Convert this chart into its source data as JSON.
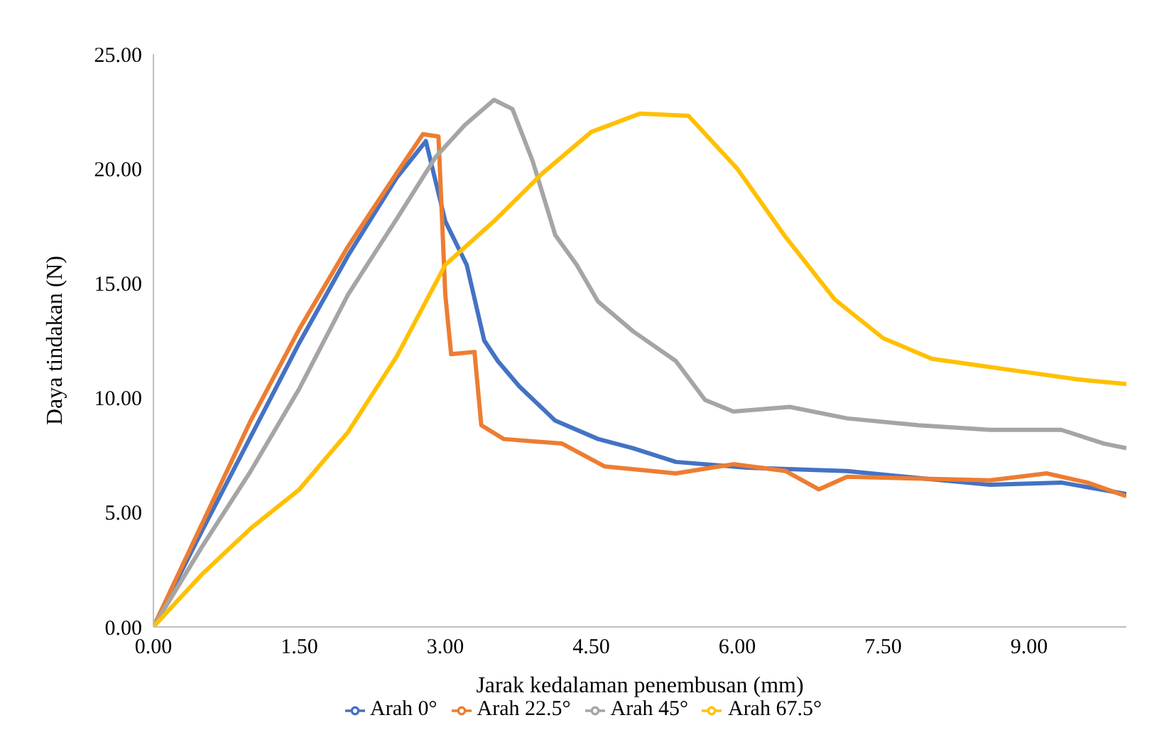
{
  "chart_data": {
    "type": "line",
    "xlabel": "Jarak kedalaman penembusan (mm)",
    "ylabel": "Daya tindakan (N)",
    "xlim": [
      0,
      10
    ],
    "ylim": [
      0,
      25
    ],
    "xticks": [
      {
        "value": 0,
        "label": "0.00"
      },
      {
        "value": 1.5,
        "label": "1.50"
      },
      {
        "value": 3,
        "label": "3.00"
      },
      {
        "value": 4.5,
        "label": "4.50"
      },
      {
        "value": 6,
        "label": "6.00"
      },
      {
        "value": 7.5,
        "label": "7.50"
      },
      {
        "value": 9,
        "label": "9.00"
      }
    ],
    "yticks": [
      {
        "value": 0,
        "label": "0.00"
      },
      {
        "value": 5,
        "label": "5.00"
      },
      {
        "value": 10,
        "label": "10.00"
      },
      {
        "value": 15,
        "label": "15.00"
      },
      {
        "value": 20,
        "label": "20.00"
      },
      {
        "value": 25,
        "label": "25.00"
      }
    ],
    "grid": false,
    "legend": "bottom",
    "marker": "none",
    "line_style": "solid",
    "series": [
      {
        "name": "Arah 0°",
        "color": "#4472c4",
        "x": [
          0,
          0.5,
          1,
          1.5,
          2,
          2.5,
          2.8,
          3.0,
          3.22,
          3.4,
          3.54,
          3.76,
          4.13,
          4.57,
          4.93,
          5.37,
          6.1,
          7.13,
          7.86,
          8.6,
          9.33,
          10
        ],
        "values": [
          0,
          4.2,
          8.3,
          12.4,
          16.2,
          19.6,
          21.2,
          17.7,
          15.8,
          12.5,
          11.6,
          10.5,
          9.0,
          8.2,
          7.8,
          7.2,
          6.95,
          6.8,
          6.5,
          6.2,
          6.3,
          5.8
        ]
      },
      {
        "name": "Arah 22.5°",
        "color": "#ed7d31",
        "x": [
          0,
          0.5,
          1,
          1.5,
          2,
          2.5,
          2.77,
          2.93,
          3.0,
          3.06,
          3.3,
          3.37,
          3.6,
          4.2,
          4.64,
          5.37,
          5.96,
          6.5,
          6.84,
          7.13,
          8.6,
          9.18,
          9.6,
          10
        ],
        "values": [
          0,
          4.5,
          9.0,
          13.0,
          16.6,
          19.8,
          21.5,
          21.4,
          14.5,
          11.9,
          12.0,
          8.8,
          8.2,
          8.0,
          7.0,
          6.7,
          7.1,
          6.8,
          6.0,
          6.55,
          6.4,
          6.7,
          6.3,
          5.7
        ]
      },
      {
        "name": "Arah 45°",
        "color": "#a5a5a5",
        "x": [
          0,
          0.5,
          1,
          1.5,
          2,
          2.5,
          2.9,
          3.2,
          3.5,
          3.69,
          3.9,
          4.13,
          4.35,
          4.57,
          4.93,
          5.37,
          5.67,
          5.96,
          6.54,
          7.13,
          7.86,
          8.6,
          9.33,
          9.77,
          10
        ],
        "values": [
          0,
          3.5,
          6.8,
          10.4,
          14.5,
          17.8,
          20.5,
          21.9,
          23.0,
          22.6,
          20.3,
          17.1,
          15.8,
          14.2,
          12.9,
          11.6,
          9.9,
          9.4,
          9.6,
          9.1,
          8.8,
          8.6,
          8.6,
          8.0,
          7.8
        ]
      },
      {
        "name": "Arah 67.5°",
        "color": "#ffc000",
        "x": [
          0,
          0.5,
          1,
          1.5,
          2,
          2.5,
          3,
          3.5,
          4,
          4.5,
          5,
          5.5,
          6,
          6.5,
          7,
          7.5,
          8,
          8.5,
          9,
          9.5,
          10
        ],
        "values": [
          0,
          2.3,
          4.3,
          6.0,
          8.5,
          11.8,
          15.8,
          17.7,
          19.8,
          21.6,
          22.4,
          22.3,
          20.0,
          17.0,
          14.3,
          12.6,
          11.7,
          11.4,
          11.1,
          10.8,
          10.6
        ]
      }
    ]
  }
}
